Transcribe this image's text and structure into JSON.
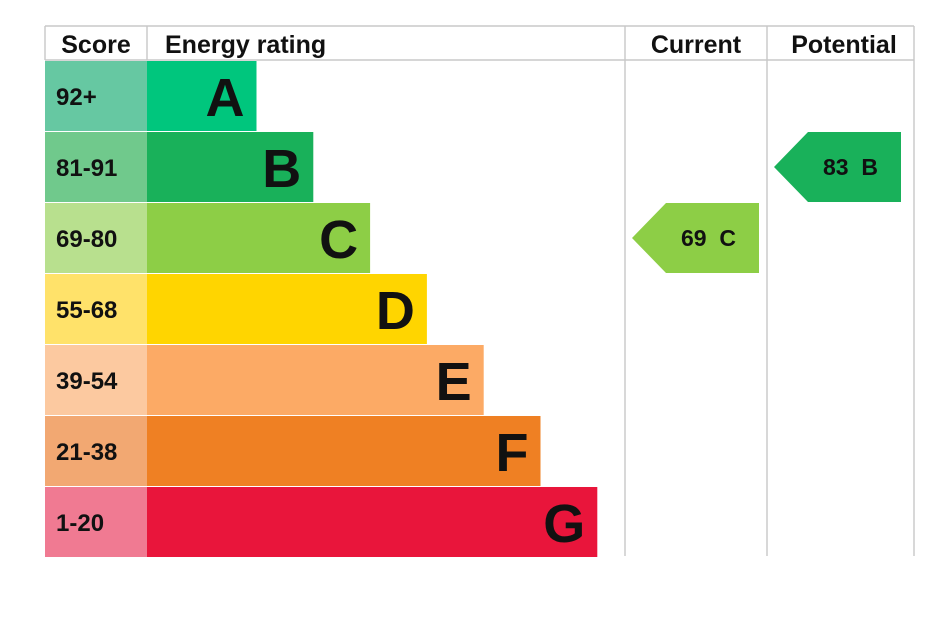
{
  "headers": {
    "score": "Score",
    "rating": "Energy rating",
    "current": "Current",
    "potential": "Potential"
  },
  "chart_data": {
    "type": "bar",
    "bands": [
      {
        "letter": "A",
        "range": "92+",
        "min": 92,
        "max": 100,
        "color": "#00c67d",
        "score_color": "#66c8a2"
      },
      {
        "letter": "B",
        "range": "81-91",
        "min": 81,
        "max": 91,
        "color": "#19b15a",
        "score_color": "#70c98c"
      },
      {
        "letter": "C",
        "range": "69-80",
        "min": 69,
        "max": 80,
        "color": "#8dce46",
        "score_color": "#b8e08e"
      },
      {
        "letter": "D",
        "range": "55-68",
        "min": 55,
        "max": 68,
        "color": "#ffd500",
        "score_color": "#ffe26a"
      },
      {
        "letter": "E",
        "range": "39-54",
        "min": 39,
        "max": 54,
        "color": "#fcaa65",
        "score_color": "#fcc9a0"
      },
      {
        "letter": "F",
        "range": "21-38",
        "min": 21,
        "max": 38,
        "color": "#ef8023",
        "score_color": "#f2a872"
      },
      {
        "letter": "G",
        "range": "1-20",
        "min": 1,
        "max": 20,
        "color": "#e9153b",
        "score_color": "#f07a92"
      }
    ],
    "current": {
      "value": 69,
      "letter": "C",
      "label": "69 C",
      "color": "#8dce46"
    },
    "potential": {
      "value": 83,
      "letter": "B",
      "label": "83 B",
      "color": "#19b15a"
    }
  }
}
